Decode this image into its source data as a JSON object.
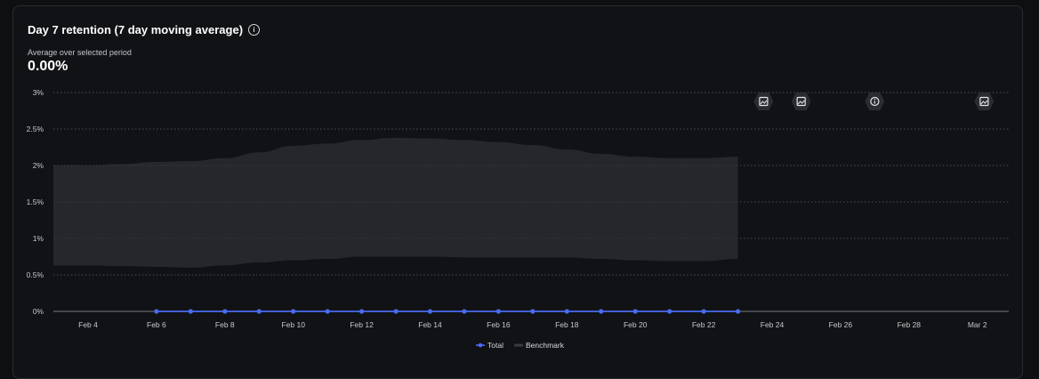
{
  "card": {
    "title": "Day 7 retention (7 day moving average)",
    "info_icon": "info-icon",
    "subtitle": "Average over selected period",
    "summary_value": "0.00%"
  },
  "chart_data": {
    "type": "line",
    "title": "Day 7 retention (7 day moving average)",
    "xlabel": "",
    "ylabel": "",
    "x_categories": [
      "Feb 3",
      "Feb 4",
      "Feb 5",
      "Feb 6",
      "Feb 7",
      "Feb 8",
      "Feb 9",
      "Feb 10",
      "Feb 11",
      "Feb 12",
      "Feb 13",
      "Feb 14",
      "Feb 15",
      "Feb 16",
      "Feb 17",
      "Feb 18",
      "Feb 19",
      "Feb 20",
      "Feb 21",
      "Feb 22",
      "Feb 23",
      "Feb 24",
      "Feb 25",
      "Feb 26",
      "Feb 27",
      "Feb 28",
      "Mar 1",
      "Mar 2",
      "Mar 3"
    ],
    "x_tick_labels": [
      "Feb 4",
      "Feb 6",
      "Feb 8",
      "Feb 10",
      "Feb 12",
      "Feb 14",
      "Feb 16",
      "Feb 18",
      "Feb 20",
      "Feb 22",
      "Feb 24",
      "Feb 26",
      "Feb 28",
      "Mar 2"
    ],
    "y_ticks": [
      "0%",
      "0.5%",
      "1%",
      "1.5%",
      "2%",
      "2.5%",
      "3%"
    ],
    "ylim": [
      0,
      3
    ],
    "grid": true,
    "legend_position": "bottom-center",
    "series": [
      {
        "name": "Total",
        "color": "#4a6cf0",
        "x": [
          "Feb 6",
          "Feb 7",
          "Feb 8",
          "Feb 9",
          "Feb 10",
          "Feb 11",
          "Feb 12",
          "Feb 13",
          "Feb 14",
          "Feb 15",
          "Feb 16",
          "Feb 17",
          "Feb 18",
          "Feb 19",
          "Feb 20",
          "Feb 21",
          "Feb 22",
          "Feb 23"
        ],
        "values": [
          0,
          0,
          0,
          0,
          0,
          0,
          0,
          0,
          0,
          0,
          0,
          0,
          0,
          0,
          0,
          0,
          0,
          0
        ]
      },
      {
        "name": "Benchmark",
        "color": "#26272b",
        "type": "band",
        "x": [
          "Feb 3",
          "Feb 4",
          "Feb 5",
          "Feb 6",
          "Feb 7",
          "Feb 8",
          "Feb 9",
          "Feb 10",
          "Feb 11",
          "Feb 12",
          "Feb 13",
          "Feb 14",
          "Feb 15",
          "Feb 16",
          "Feb 17",
          "Feb 18",
          "Feb 19",
          "Feb 20",
          "Feb 21",
          "Feb 22",
          "Feb 23"
        ],
        "upper": [
          2.0,
          2.0,
          2.02,
          2.05,
          2.06,
          2.1,
          2.18,
          2.27,
          2.3,
          2.35,
          2.38,
          2.37,
          2.35,
          2.32,
          2.28,
          2.22,
          2.16,
          2.12,
          2.1,
          2.1,
          2.12
        ],
        "lower": [
          0.63,
          0.63,
          0.62,
          0.61,
          0.6,
          0.63,
          0.67,
          0.7,
          0.72,
          0.75,
          0.75,
          0.75,
          0.74,
          0.74,
          0.74,
          0.74,
          0.72,
          0.7,
          0.69,
          0.69,
          0.72
        ]
      }
    ],
    "annotation_icons": [
      {
        "name": "image-icon",
        "x": "Feb 23.75"
      },
      {
        "name": "image-icon",
        "x": "Feb 24.85"
      },
      {
        "name": "info-icon",
        "x": "Feb 27"
      },
      {
        "name": "image-icon",
        "x": "Mar 2.2"
      }
    ]
  }
}
